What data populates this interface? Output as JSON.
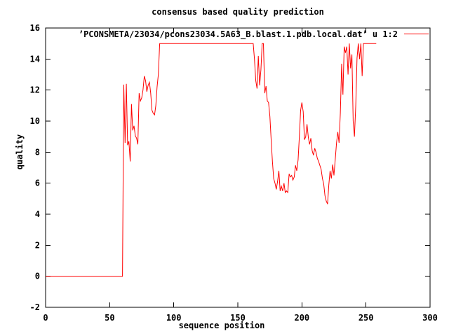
{
  "chart_data": {
    "type": "line",
    "title": "consensus based quality prediction",
    "xlabel": "sequence position",
    "ylabel": "quality",
    "xlim": [
      0,
      300
    ],
    "ylim": [
      -2,
      16
    ],
    "xticks": [
      0,
      50,
      100,
      150,
      200,
      250,
      300
    ],
    "yticks": [
      -2,
      0,
      2,
      4,
      6,
      8,
      10,
      12,
      14,
      16
    ],
    "grid": false,
    "legend_position": "top-right-inside",
    "line_color": "#ff0000",
    "border_color": "#000000",
    "series": [
      {
        "name": "’PCONSMETA/23034/pcons23034.5A63_B.blast.1.pdb.local.dat’ u 1:2",
        "color": "#ff0000",
        "points": [
          [
            0,
            0
          ],
          [
            60,
            0
          ],
          [
            61,
            12.35
          ],
          [
            62,
            8.6
          ],
          [
            63,
            12.4
          ],
          [
            64,
            8.45
          ],
          [
            65,
            8.7
          ],
          [
            66,
            7.4
          ],
          [
            67,
            11.1
          ],
          [
            68,
            9.4
          ],
          [
            69,
            9.7
          ],
          [
            70,
            9.05
          ],
          [
            71,
            8.9
          ],
          [
            72,
            8.5
          ],
          [
            73,
            11.8
          ],
          [
            74,
            11.3
          ],
          [
            75,
            11.5
          ],
          [
            76,
            12.0
          ],
          [
            77,
            12.9
          ],
          [
            78,
            12.6
          ],
          [
            79,
            11.9
          ],
          [
            80,
            12.3
          ],
          [
            81,
            12.5
          ],
          [
            82,
            11.8
          ],
          [
            83,
            10.7
          ],
          [
            84,
            10.5
          ],
          [
            85,
            10.4
          ],
          [
            86,
            11.0
          ],
          [
            87,
            12.2
          ],
          [
            88,
            13.0
          ],
          [
            89,
            15
          ],
          [
            162,
            15
          ],
          [
            163,
            14.0
          ],
          [
            164,
            12.6
          ],
          [
            165,
            12.1
          ],
          [
            166,
            14.2
          ],
          [
            167,
            12.3
          ],
          [
            168,
            13.3
          ],
          [
            169,
            15
          ],
          [
            170,
            15
          ],
          [
            171,
            11.8
          ],
          [
            172,
            12.25
          ],
          [
            173,
            11.3
          ],
          [
            174,
            11.2
          ],
          [
            175,
            10.3
          ],
          [
            176,
            8.8
          ],
          [
            177,
            7.4
          ],
          [
            178,
            6.3
          ],
          [
            179,
            6.0
          ],
          [
            180,
            5.6
          ],
          [
            181,
            6.1
          ],
          [
            182,
            6.8
          ],
          [
            183,
            5.5
          ],
          [
            184,
            5.8
          ],
          [
            185,
            5.5
          ],
          [
            186,
            6.0
          ],
          [
            187,
            5.4
          ],
          [
            188,
            5.5
          ],
          [
            189,
            5.4
          ],
          [
            190,
            6.6
          ],
          [
            191,
            6.4
          ],
          [
            192,
            6.5
          ],
          [
            193,
            6.2
          ],
          [
            194,
            6.4
          ],
          [
            195,
            7.15
          ],
          [
            196,
            6.8
          ],
          [
            197,
            7.5
          ],
          [
            198,
            9.0
          ],
          [
            199,
            10.7
          ],
          [
            200,
            11.2
          ],
          [
            201,
            10.6
          ],
          [
            202,
            8.8
          ],
          [
            203,
            9.0
          ],
          [
            204,
            9.8
          ],
          [
            205,
            8.95
          ],
          [
            206,
            8.5
          ],
          [
            207,
            8.9
          ],
          [
            208,
            8.1
          ],
          [
            209,
            7.8
          ],
          [
            210,
            8.25
          ],
          [
            211,
            8.0
          ],
          [
            212,
            7.6
          ],
          [
            213,
            7.4
          ],
          [
            214,
            7.15
          ],
          [
            215,
            6.9
          ],
          [
            216,
            6.3
          ],
          [
            217,
            5.95
          ],
          [
            218,
            5.2
          ],
          [
            219,
            4.85
          ],
          [
            220,
            4.65
          ],
          [
            221,
            5.9
          ],
          [
            222,
            6.8
          ],
          [
            223,
            6.3
          ],
          [
            224,
            7.2
          ],
          [
            225,
            6.5
          ],
          [
            226,
            7.5
          ],
          [
            227,
            8.6
          ],
          [
            228,
            9.3
          ],
          [
            229,
            8.6
          ],
          [
            230,
            10.5
          ],
          [
            231,
            13.7
          ],
          [
            232,
            11.7
          ],
          [
            233,
            14.8
          ],
          [
            234,
            14.4
          ],
          [
            235,
            14.8
          ],
          [
            236,
            13.0
          ],
          [
            237,
            15.0
          ],
          [
            238,
            13.4
          ],
          [
            239,
            14.3
          ],
          [
            240,
            10.0
          ],
          [
            241,
            9.0
          ],
          [
            242,
            11.0
          ],
          [
            243,
            14.05
          ],
          [
            244,
            15.0
          ],
          [
            245,
            14.0
          ],
          [
            246,
            15.0
          ],
          [
            247,
            12.9
          ],
          [
            248,
            15.0
          ],
          [
            258,
            15.0
          ]
        ]
      }
    ]
  }
}
